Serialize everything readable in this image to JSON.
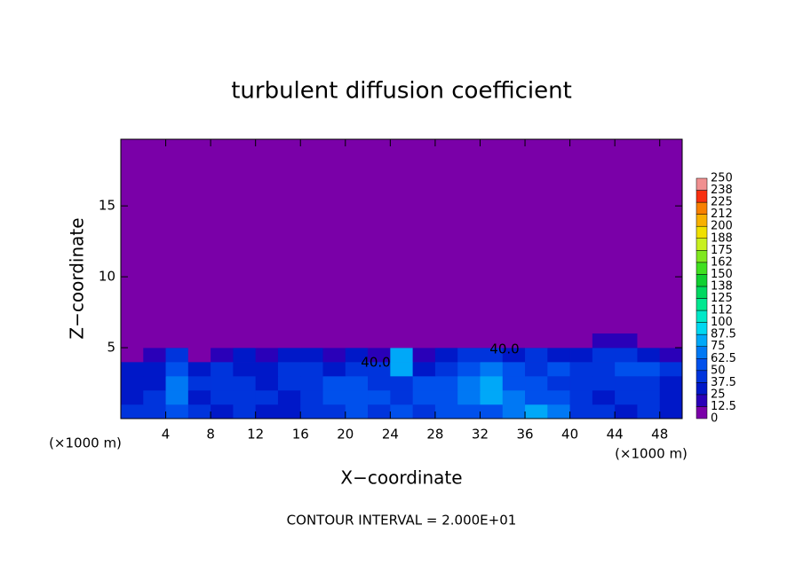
{
  "chart_data": {
    "type": "contour",
    "title": "turbulent diffusion coefficient",
    "x_label": "X−coordinate",
    "y_label": "Z−coordinate",
    "x_unit": "(×1000 m)",
    "x_unit_right": "(×1000 m)",
    "footer": "CONTOUR INTERVAL = 2.000E+01",
    "contour_labels": [
      "40.0",
      "40.0"
    ],
    "xlim": [
      0,
      50
    ],
    "ylim": [
      0,
      19.7
    ],
    "xticks": [
      4,
      8,
      12,
      16,
      20,
      24,
      28,
      32,
      36,
      40,
      44,
      48
    ],
    "yticks": [
      5,
      10,
      15
    ],
    "x": [
      1,
      3,
      5,
      7,
      9,
      11,
      13,
      15,
      17,
      19,
      21,
      23,
      25,
      27,
      29,
      31,
      33,
      35,
      37,
      39,
      41,
      43,
      45,
      47,
      49
    ],
    "y": [
      0.5,
      1.5,
      2.5,
      3.5,
      4.5,
      5.5
    ],
    "z": [
      [
        40,
        45,
        60,
        40,
        35,
        40,
        35,
        30,
        40,
        45,
        50,
        45,
        55,
        40,
        60,
        55,
        60,
        70,
        75,
        65,
        45,
        40,
        35,
        40,
        30
      ],
      [
        35,
        40,
        70,
        35,
        40,
        45,
        40,
        35,
        45,
        50,
        55,
        50,
        45,
        50,
        60,
        65,
        80,
        70,
        60,
        50,
        40,
        35,
        40,
        45,
        35
      ],
      [
        30,
        35,
        65,
        40,
        45,
        40,
        35,
        40,
        45,
        50,
        55,
        45,
        40,
        60,
        60,
        70,
        85,
        55,
        50,
        45,
        45,
        40,
        45,
        40,
        35
      ],
      [
        35,
        30,
        55,
        35,
        40,
        30,
        35,
        45,
        40,
        35,
        45,
        40,
        80,
        30,
        45,
        60,
        65,
        50,
        45,
        50,
        40,
        45,
        55,
        50,
        45
      ],
      [
        10,
        15,
        40,
        10,
        20,
        25,
        15,
        25,
        30,
        20,
        25,
        20,
        75,
        15,
        30,
        45,
        40,
        35,
        40,
        30,
        25,
        45,
        40,
        35,
        15
      ],
      [
        2,
        3,
        8,
        2,
        3,
        4,
        3,
        5,
        4,
        3,
        4,
        3,
        10,
        3,
        4,
        8,
        10,
        6,
        5,
        5,
        6,
        15,
        20,
        8,
        3
      ]
    ],
    "levels": [
      0,
      12.5,
      25,
      37.5,
      50,
      62.5,
      75,
      87.5,
      100,
      112,
      125,
      138,
      150,
      162,
      175,
      188,
      200,
      212,
      225,
      238,
      250
    ],
    "colors": [
      "#7a00a8",
      "#2a00b8",
      "#0018c8",
      "#0034dc",
      "#0050ec",
      "#0078f4",
      "#00a8f8",
      "#00d8f0",
      "#00e8c8",
      "#00e890",
      "#00d860",
      "#10d030",
      "#40e020",
      "#80e820",
      "#c8f020",
      "#f0e000",
      "#f8b000",
      "#f88000",
      "#f83010",
      "#f09090"
    ]
  }
}
